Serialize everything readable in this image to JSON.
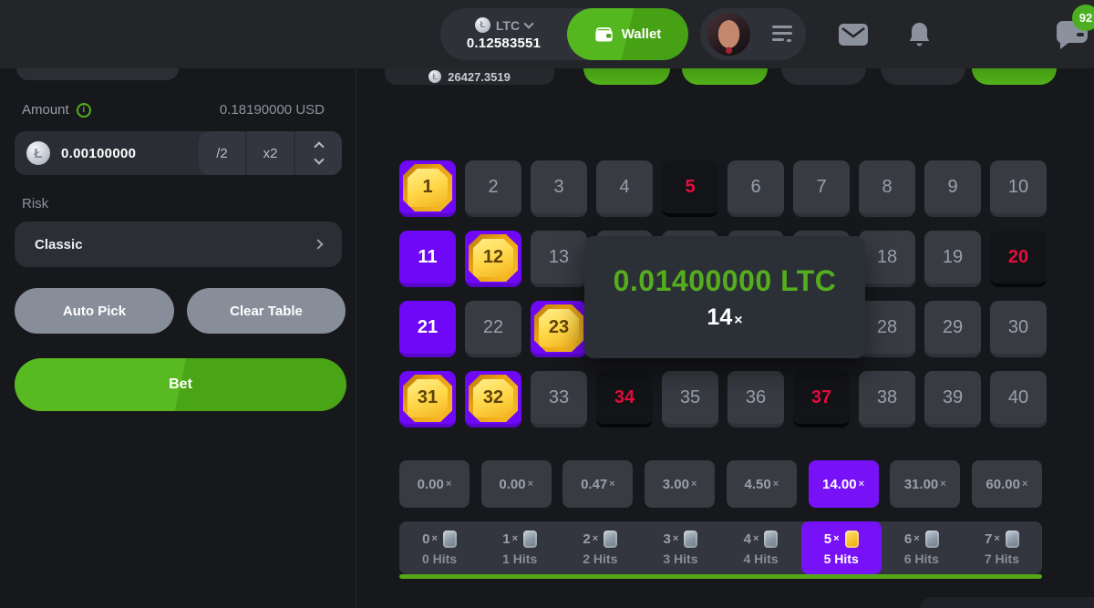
{
  "colors": {
    "accent_purple": "#6e08f6",
    "accent_green": "#54ad1c",
    "miss_red": "#e50d3d",
    "gem_gold": "#f7bd25",
    "button_green_light": "#58ba20",
    "button_green_dark": "#49a515"
  },
  "header": {
    "currency": {
      "code": "LTC",
      "balance": "0.12583551"
    },
    "wallet_label": "Wallet",
    "chat_badge": "92"
  },
  "sidebar": {
    "amount_label": "Amount",
    "amount_fiat": "0.18190000 USD",
    "amount_value": "0.00100000",
    "half_label": "/2",
    "double_label": "x2",
    "risk_label": "Risk",
    "risk_value": "Classic",
    "auto_pick_label": "Auto Pick",
    "clear_table_label": "Clear Table",
    "bet_label": "Bet"
  },
  "main": {
    "game_balance": "26427.3519",
    "top_buttons": [
      "green",
      "green",
      "dark",
      "dark",
      "green"
    ],
    "times_symbol": "×",
    "result_popup": {
      "amount": "0.01400000 LTC",
      "multiplier": "14",
      "times_symbol": "×"
    },
    "board": {
      "rows": 4,
      "cols": 10,
      "hit": [
        1,
        12,
        23,
        31,
        32
      ],
      "selected": [
        11,
        21
      ],
      "miss": [
        5,
        20,
        34,
        37
      ]
    },
    "multipliers": {
      "values": [
        "0.00",
        "0.00",
        "0.47",
        "3.00",
        "4.50",
        "14.00",
        "31.00",
        "60.00"
      ],
      "selected_index": 5
    },
    "hits_row": {
      "cells": [
        {
          "count": "0",
          "label": "0 Hits"
        },
        {
          "count": "1",
          "label": "1 Hits"
        },
        {
          "count": "2",
          "label": "2 Hits"
        },
        {
          "count": "3",
          "label": "3 Hits"
        },
        {
          "count": "4",
          "label": "4 Hits"
        },
        {
          "count": "5",
          "label": "5 Hits"
        },
        {
          "count": "6",
          "label": "6 Hits"
        },
        {
          "count": "7",
          "label": "7 Hits"
        }
      ],
      "selected_index": 5
    }
  }
}
